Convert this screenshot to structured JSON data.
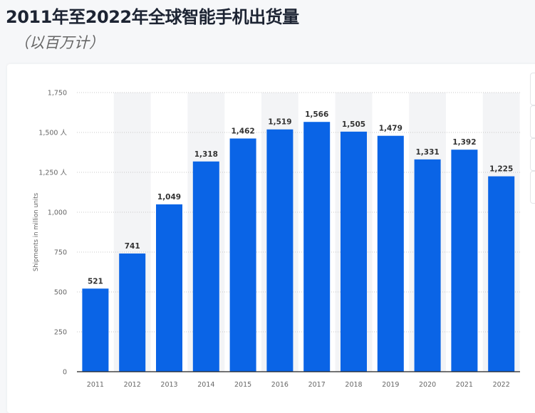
{
  "title": "2011年至2022年全球智能手机出货量",
  "subtitle": "（以百万计）",
  "colors": {
    "bar": "#0a64e6",
    "band": "#f3f4f6"
  },
  "chart_data": {
    "type": "bar",
    "title": "2011年至2022年全球智能手机出货量",
    "subtitle": "（以百万计）",
    "ylabel": "Shipments in million units",
    "xlabel": "",
    "ylim": [
      0,
      1750
    ],
    "grid": true,
    "categories": [
      "2011",
      "2012",
      "2013",
      "2014",
      "2015",
      "2016",
      "2017",
      "2018",
      "2019",
      "2020",
      "2021",
      "2022"
    ],
    "values": [
      521,
      741,
      1049,
      1318,
      1462,
      1519,
      1566,
      1505,
      1479,
      1331,
      1392,
      1225
    ],
    "data_labels": [
      "521",
      "741",
      "1,049",
      "1,318",
      "1,462",
      "1,519",
      "1,566",
      "1,505",
      "1,479",
      "1,331",
      "1,392",
      "1,225"
    ],
    "yticks": [
      0,
      250,
      500,
      750,
      1000,
      1250,
      1500,
      1750
    ],
    "ytick_labels": [
      "0",
      "250",
      "500",
      "750",
      "1,000",
      "1,250 人",
      "1,500 人",
      "1,750"
    ]
  }
}
